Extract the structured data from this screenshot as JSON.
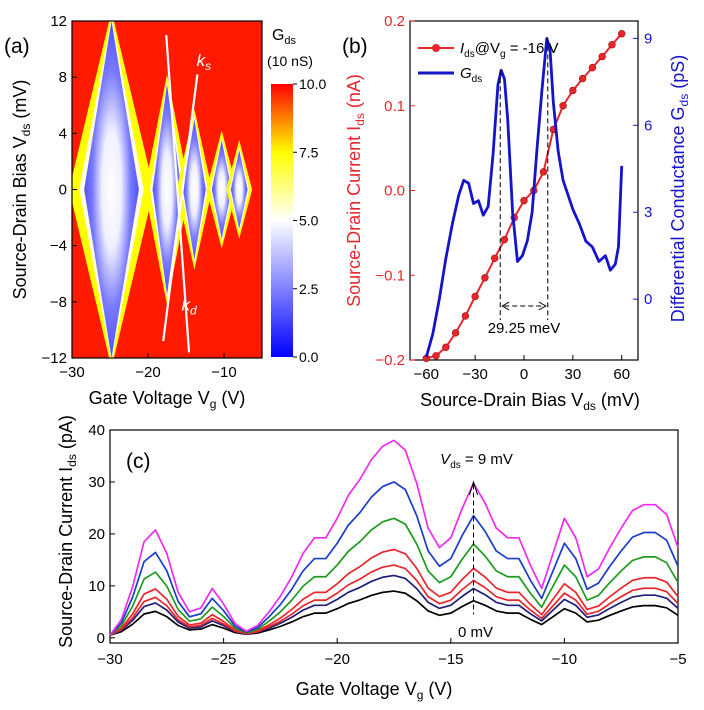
{
  "chart_data": [
    {
      "panel": "(a)",
      "type": "heatmap",
      "xlabel": "Gate Voltage V",
      "xlabel_sub": "g",
      "xlabel_unit": " (V)",
      "ylabel": "Source-Drain Bias V",
      "ylabel_sub": "ds",
      "ylabel_unit": " (mV)",
      "xlim": [
        -30,
        -5
      ],
      "ylim": [
        -12,
        12
      ],
      "xticks": [
        -30,
        -20,
        -10
      ],
      "yticks": [
        -12,
        -8,
        -4,
        0,
        4,
        8,
        12
      ],
      "colorbar": {
        "title": "G",
        "title_sub": "ds",
        "units": "(10 nS)",
        "range": [
          0,
          10
        ],
        "ticks": [
          "10.0",
          "7.5",
          "5.0",
          "2.5",
          "0.0"
        ],
        "colors": [
          "#0000ff",
          "#ffffff",
          "#ffff00",
          "#ff0000"
        ]
      },
      "annotations": [
        {
          "text": "k",
          "sub": "s",
          "at": [
            -13.6,
            8.8
          ]
        },
        {
          "text": "k",
          "sub": "d",
          "at": [
            -15.6,
            -8.6
          ]
        }
      ],
      "diamonds": [
        {
          "vg": -24.8,
          "half_width": 3.6,
          "height": 12
        },
        {
          "vg": -17.5,
          "half_width": 1.9,
          "height": 7.5
        },
        {
          "vg": -13.9,
          "half_width": 1.5,
          "height": 5
        },
        {
          "vg": -10.3,
          "half_width": 1.3,
          "height": 3.5
        },
        {
          "vg": -8.0,
          "half_width": 1.1,
          "height": 2.8
        }
      ],
      "lines": [
        {
          "from": [
            -17.6,
            11.0
          ],
          "to": [
            -14.6,
            -11.6
          ]
        },
        {
          "from": [
            -13.5,
            8.2
          ],
          "to": [
            -18.0,
            -10.8
          ]
        }
      ]
    },
    {
      "panel": "(b)",
      "type": "line",
      "xlabel": "Source-Drain Bias V",
      "xlabel_sub": "ds",
      "xlabel_unit": " (mV)",
      "ylabel_left": "Source-Drain Current I",
      "ylabel_left_sub": "ds",
      "ylabel_left_unit": " (nA)",
      "ylabel_right": "Differential Conductance G",
      "ylabel_right_sub": "ds",
      "ylabel_right_unit": " (pS)",
      "xlim": [
        -70,
        70
      ],
      "ylim_left": [
        -0.2,
        0.2
      ],
      "ylim_right": [
        -2.1,
        9.6
      ],
      "xticks": [
        -60,
        -30,
        0,
        30,
        60
      ],
      "yticks_left": [
        -0.2,
        -0.1,
        0.0,
        0.1,
        0.2
      ],
      "yticks_right": [
        0,
        3,
        6,
        9
      ],
      "legend": [
        {
          "label": "I",
          "sub": "ds",
          "extra": "@V",
          "extra_sub": "g",
          "tail": " = -16 V",
          "color": "#e8262b"
        },
        {
          "label": "G",
          "sub": "ds",
          "color": "#1414c8"
        }
      ],
      "annotation": "29.25 meV",
      "peaks_x": [
        -14.6,
        14.6
      ],
      "series": [
        {
          "name": "I_ds@V_g = -16 V",
          "axis": "left",
          "color": "#e8262b",
          "x": [
            -60,
            -54,
            -48,
            -42,
            -36,
            -30,
            -24,
            -18,
            -12,
            -6,
            0,
            6,
            12,
            18,
            24,
            30,
            36,
            42,
            48,
            54,
            60
          ],
          "y": [
            -0.198,
            -0.195,
            -0.185,
            -0.168,
            -0.148,
            -0.125,
            -0.103,
            -0.08,
            -0.058,
            -0.032,
            -0.012,
            0.0,
            0.022,
            0.072,
            0.1,
            0.118,
            0.132,
            0.145,
            0.158,
            0.172,
            0.185
          ]
        },
        {
          "name": "G_ds",
          "axis": "right",
          "color": "#1414c8",
          "x": [
            -60,
            -56,
            -52,
            -48,
            -44,
            -40,
            -37,
            -34,
            -31,
            -28,
            -25,
            -22,
            -19,
            -16,
            -14,
            -12,
            -10,
            -7,
            -4,
            -1,
            2,
            5,
            8,
            11,
            14,
            16,
            18,
            21,
            24,
            27,
            30,
            34,
            38,
            42,
            46,
            50,
            53,
            56,
            58,
            60
          ],
          "y": [
            -2.0,
            -1.2,
            0.0,
            1.4,
            2.6,
            3.6,
            4.1,
            4.0,
            3.3,
            3.4,
            2.9,
            3.2,
            5.0,
            7.4,
            7.9,
            7.6,
            6.2,
            3.0,
            1.3,
            1.5,
            2.0,
            3.0,
            5.2,
            7.2,
            9.0,
            8.6,
            6.8,
            5.1,
            4.1,
            3.6,
            3.1,
            2.6,
            2.0,
            1.8,
            1.3,
            1.5,
            1.0,
            1.2,
            1.8,
            4.6
          ]
        }
      ]
    },
    {
      "panel": "(c)",
      "type": "line",
      "xlabel": "Gate Voltage V",
      "xlabel_sub": "g",
      "xlabel_unit": " (V)",
      "ylabel": "Source-Drain Current I",
      "ylabel_sub": "ds",
      "ylabel_unit": " (pA)",
      "xlim": [
        -30,
        -5
      ],
      "ylim": [
        -1,
        40
      ],
      "xticks": [
        -30,
        -25,
        -20,
        -15,
        -10,
        -5
      ],
      "yticks": [
        0,
        10,
        20,
        30,
        40
      ],
      "annotation_top": "V",
      "annotation_top_sub": "ds",
      "annotation_top_tail": " = 9 mV",
      "annotation_bottom": "0 mV",
      "marker_x": -14,
      "x": [
        -30,
        -29.5,
        -29,
        -28.5,
        -28,
        -27.5,
        -27,
        -26.5,
        -26,
        -25.5,
        -25,
        -24.5,
        -24,
        -23.5,
        -23,
        -22.5,
        -22,
        -21.5,
        -21,
        -20.5,
        -20,
        -19.5,
        -19,
        -18.5,
        -18,
        -17.5,
        -17,
        -16.5,
        -16,
        -15.5,
        -15,
        -14.5,
        -14,
        -13.5,
        -13,
        -12.5,
        -12,
        -11.5,
        -11,
        -10.5,
        -10,
        -9.5,
        -9,
        -8.5,
        -8,
        -7.5,
        -7,
        -6.5,
        -6,
        -5.5,
        -5
      ],
      "shape": [
        0,
        0.08,
        0.25,
        0.48,
        0.54,
        0.42,
        0.22,
        0.12,
        0.14,
        0.24,
        0.16,
        0.06,
        0.02,
        0.05,
        0.12,
        0.2,
        0.3,
        0.42,
        0.5,
        0.5,
        0.6,
        0.72,
        0.8,
        0.9,
        0.97,
        1.0,
        0.95,
        0.78,
        0.55,
        0.45,
        0.5,
        0.65,
        0.78,
        0.68,
        0.55,
        0.5,
        0.5,
        0.36,
        0.24,
        0.42,
        0.6,
        0.5,
        0.3,
        0.34,
        0.45,
        0.55,
        0.64,
        0.67,
        0.67,
        0.62,
        0.45
      ],
      "series": [
        {
          "color": "#000000",
          "amp": 8.5,
          "base": 0.5
        },
        {
          "color": "#1e1e78",
          "amp": 11.5,
          "base": 0.5
        },
        {
          "color": "#e8262b",
          "amp": 13.5,
          "base": 0.5
        },
        {
          "color": "#e8262b",
          "amp": 16.5,
          "base": 0.5
        },
        {
          "color": "#1e9b1e",
          "amp": 22.5,
          "base": 0.5
        },
        {
          "color": "#1b3cc8",
          "amp": 29.5,
          "base": 0.5
        },
        {
          "color": "#f02bf0",
          "amp": 37.5,
          "base": 0.5
        }
      ]
    }
  ]
}
